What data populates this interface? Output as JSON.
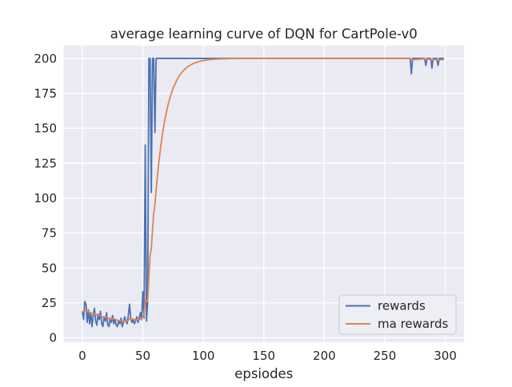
{
  "figure": {
    "background": "#ffffff",
    "axes_background": "#eaeaf2",
    "grid_color": "#ffffff",
    "text_color": "#262626"
  },
  "chart_data": {
    "type": "line",
    "title": "average learning curve of DQN for CartPole-v0",
    "xlabel": "epsiodes",
    "ylabel": "",
    "grid": true,
    "legend_position": "lower right",
    "x_ticks": [
      0,
      50,
      100,
      150,
      200,
      250,
      300
    ],
    "y_ticks": [
      0,
      25,
      50,
      75,
      100,
      125,
      150,
      175,
      200
    ],
    "xlim": [
      -15.5,
      315.5
    ],
    "ylim": [
      -3.2,
      209.2
    ],
    "x_start": 0,
    "x_step": 1,
    "series": [
      {
        "name": "rewards",
        "color": "#4C72B0",
        "values": [
          19,
          13,
          26,
          24,
          11,
          20,
          10,
          18,
          8,
          16,
          21,
          12,
          9,
          17,
          13,
          19,
          10,
          8,
          15,
          12,
          18,
          9,
          8,
          14,
          11,
          16,
          10,
          13,
          9,
          8,
          12,
          10,
          14,
          8,
          11,
          15,
          12,
          10,
          16,
          24,
          14,
          11,
          13,
          10,
          12,
          15,
          11,
          14,
          18,
          13,
          33,
          14,
          138,
          12,
          25,
          200,
          200,
          104,
          200,
          200,
          147,
          200,
          200,
          200,
          200,
          200,
          200,
          200,
          200,
          200,
          200,
          200,
          200,
          200,
          200,
          200,
          200,
          200,
          200,
          200,
          200,
          200,
          200,
          200,
          200,
          200,
          200,
          200,
          200,
          200,
          200,
          200,
          200,
          200,
          200,
          200,
          200,
          200,
          200,
          200,
          200,
          200,
          200,
          200,
          200,
          200,
          200,
          200,
          200,
          200,
          200,
          200,
          200,
          200,
          200,
          200,
          200,
          200,
          200,
          200,
          200,
          200,
          200,
          200,
          200,
          200,
          200,
          200,
          200,
          200,
          200,
          200,
          200,
          200,
          200,
          200,
          200,
          200,
          200,
          200,
          200,
          200,
          200,
          200,
          200,
          200,
          200,
          200,
          200,
          200,
          200,
          200,
          200,
          200,
          200,
          200,
          200,
          200,
          200,
          200,
          200,
          200,
          200,
          200,
          200,
          200,
          200,
          200,
          200,
          200,
          200,
          200,
          200,
          200,
          200,
          200,
          200,
          200,
          200,
          200,
          200,
          200,
          200,
          200,
          200,
          200,
          200,
          200,
          200,
          200,
          200,
          200,
          200,
          200,
          200,
          200,
          200,
          200,
          200,
          200,
          200,
          200,
          200,
          200,
          200,
          200,
          200,
          200,
          200,
          200,
          200,
          200,
          200,
          200,
          200,
          200,
          200,
          200,
          200,
          200,
          200,
          200,
          200,
          200,
          200,
          200,
          200,
          200,
          200,
          200,
          200,
          200,
          200,
          200,
          200,
          200,
          200,
          200,
          200,
          200,
          200,
          200,
          200,
          200,
          200,
          200,
          200,
          200,
          200,
          200,
          200,
          200,
          200,
          200,
          200,
          200,
          200,
          200,
          200,
          200,
          200,
          200,
          200,
          200,
          200,
          200,
          200,
          200,
          200,
          200,
          200,
          200,
          189,
          200,
          200,
          200,
          200,
          200,
          200,
          200,
          200,
          200,
          200,
          200,
          195,
          200,
          200,
          200,
          200,
          193,
          200,
          200,
          200,
          200,
          195,
          200,
          200,
          200,
          200,
          200
        ]
      },
      {
        "name": "ma rewards",
        "color": "#DD8452",
        "values": [
          19,
          18.4,
          19.2,
          19.6,
          18.8,
          18.9,
          18,
          18,
          17,
          16.9,
          17.3,
          16.8,
          16,
          16.1,
          15.8,
          16.1,
          15.5,
          14.8,
          14.8,
          14.5,
          14.9,
          14.3,
          13.7,
          13.7,
          13.4,
          13.7,
          13.3,
          13.3,
          12.9,
          12.4,
          12.4,
          12.2,
          12.4,
          12,
          11.9,
          12.2,
          12.2,
          12,
          12.4,
          13.6,
          13.6,
          13.3,
          13.3,
          13,
          12.9,
          13.1,
          12.9,
          13,
          13.5,
          13.5,
          15.5,
          15.3,
          27.6,
          26,
          25.9,
          43.3,
          59,
          63.5,
          77.2,
          89.5,
          95.3,
          105.8,
          115.2,
          123.7,
          131.3,
          138.2,
          144.4,
          150,
          155,
          159.5,
          163.6,
          167.2,
          170.5,
          173.4,
          176.1,
          178.5,
          180.6,
          182.5,
          184.3,
          185.9,
          187.3,
          188.6,
          189.7,
          190.7,
          191.7,
          192.5,
          193.3,
          194,
          194.6,
          195.1,
          195.6,
          196,
          196.4,
          196.8,
          197.1,
          197.4,
          197.7,
          197.9,
          198.1,
          198.3,
          198.5,
          198.6,
          198.8,
          198.9,
          199,
          199.1,
          199.2,
          199.3,
          199.4,
          199.4,
          199.5,
          199.5,
          199.6,
          199.6,
          199.7,
          199.7,
          199.7,
          199.8,
          199.8,
          199.8,
          199.8,
          199.9,
          199.9,
          199.9,
          199.9,
          199.9,
          199.9,
          199.9,
          199.9,
          199.9,
          200,
          200,
          200,
          200,
          200,
          200,
          200,
          200,
          200,
          200,
          200,
          200,
          200,
          200,
          200,
          200,
          200,
          200,
          200,
          200,
          200,
          200,
          200,
          200,
          200,
          200,
          200,
          200,
          200,
          200,
          200,
          200,
          200,
          200,
          200,
          200,
          200,
          200,
          200,
          200,
          200,
          200,
          200,
          200,
          200,
          200,
          200,
          200,
          200,
          200,
          200,
          200,
          200,
          200,
          200,
          200,
          200,
          200,
          200,
          200,
          200,
          200,
          200,
          200,
          200,
          200,
          200,
          200,
          200,
          200,
          200,
          200,
          200,
          200,
          200,
          200,
          200,
          200,
          200,
          200,
          200,
          200,
          200,
          200,
          200,
          200,
          200,
          200,
          200,
          200,
          200,
          200,
          200,
          200,
          200,
          200,
          200,
          200,
          200,
          200,
          200,
          200,
          200,
          200,
          200,
          200,
          200,
          200,
          200,
          200,
          200,
          200,
          200,
          200,
          200,
          200,
          200,
          200,
          200,
          200,
          200,
          200,
          200,
          200,
          200,
          200,
          200,
          200,
          200,
          200,
          200,
          200,
          200,
          200,
          200,
          200,
          200,
          200,
          200,
          200,
          200,
          200,
          198.9,
          199,
          199.1,
          199.2,
          199.3,
          199.3,
          199.4,
          199.5,
          199.5,
          199.6,
          199.6,
          199.7,
          199.2,
          199.3,
          199.4,
          199.4,
          199.5,
          198.9,
          199,
          199.1,
          199.2,
          199.2,
          198.8,
          198.9,
          199,
          199.1,
          199.2,
          199.3
        ]
      }
    ]
  }
}
